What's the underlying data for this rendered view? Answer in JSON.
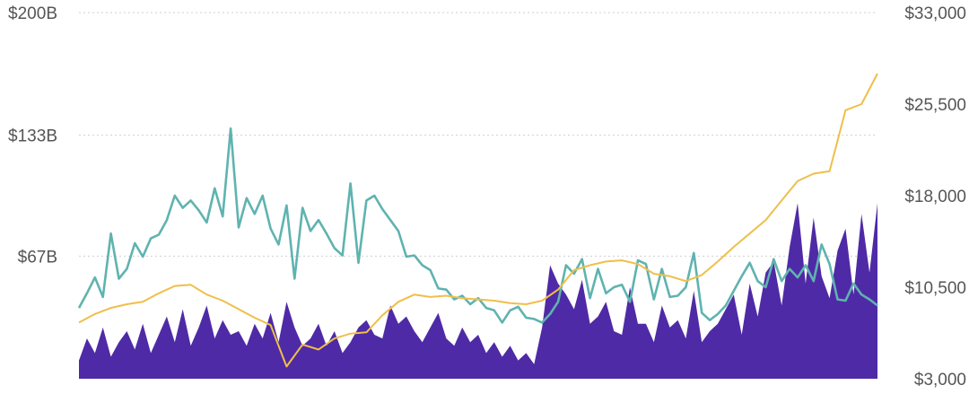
{
  "chart_data": {
    "type": "area",
    "title": "",
    "xlabel": "",
    "grid": true,
    "legend": "none",
    "axes": {
      "left": {
        "ticks": [
          "$200B",
          "$133B",
          "$67B"
        ],
        "tick_values": [
          200,
          133,
          67
        ],
        "range": [
          0,
          200
        ],
        "unit": "billion USD"
      },
      "right": {
        "ticks": [
          "$33,000",
          "$25,500",
          "$18,000",
          "$10,500",
          "$3,000"
        ],
        "tick_values": [
          33000,
          25500,
          18000,
          10500,
          3000
        ],
        "range": [
          3000,
          33000
        ]
      }
    },
    "x_range": [
      0,
      1
    ],
    "colors": {
      "area": "#4f2aa6",
      "teal": "#5fb3b0",
      "gold": "#efbf4a"
    },
    "series": [
      {
        "kind": "area",
        "axis": "left",
        "x": [
          0,
          0.01,
          0.02,
          0.03,
          0.04,
          0.05,
          0.06,
          0.07,
          0.08,
          0.09,
          0.1,
          0.11,
          0.12,
          0.13,
          0.14,
          0.15,
          0.16,
          0.17,
          0.18,
          0.19,
          0.2,
          0.21,
          0.22,
          0.23,
          0.24,
          0.25,
          0.26,
          0.27,
          0.28,
          0.29,
          0.3,
          0.31,
          0.32,
          0.33,
          0.34,
          0.35,
          0.36,
          0.37,
          0.38,
          0.39,
          0.4,
          0.41,
          0.42,
          0.43,
          0.44,
          0.45,
          0.46,
          0.47,
          0.48,
          0.49,
          0.5,
          0.51,
          0.52,
          0.53,
          0.54,
          0.55,
          0.56,
          0.57,
          0.58,
          0.59,
          0.6,
          0.61,
          0.62,
          0.63,
          0.64,
          0.65,
          0.66,
          0.67,
          0.68,
          0.69,
          0.7,
          0.71,
          0.72,
          0.73,
          0.74,
          0.75,
          0.76,
          0.77,
          0.78,
          0.79,
          0.8,
          0.81,
          0.82,
          0.83,
          0.84,
          0.85,
          0.86,
          0.87,
          0.88,
          0.89,
          0.9,
          0.91,
          0.92,
          0.93,
          0.94,
          0.95,
          0.96,
          0.97,
          0.98,
          0.99,
          1
        ],
        "values": [
          10,
          22,
          14,
          28,
          12,
          20,
          26,
          16,
          30,
          14,
          24,
          34,
          20,
          38,
          18,
          28,
          40,
          22,
          32,
          24,
          26,
          18,
          30,
          22,
          36,
          20,
          42,
          28,
          18,
          22,
          30,
          18,
          26,
          14,
          20,
          28,
          32,
          24,
          22,
          40,
          30,
          34,
          26,
          20,
          28,
          36,
          22,
          18,
          28,
          20,
          24,
          14,
          20,
          12,
          18,
          10,
          14,
          8,
          28,
          62,
          52,
          46,
          38,
          54,
          30,
          34,
          42,
          26,
          24,
          50,
          30,
          30,
          20,
          40,
          28,
          32,
          22,
          48,
          20,
          26,
          30,
          38,
          46,
          24,
          52,
          34,
          58,
          64,
          40,
          72,
          96,
          52,
          88,
          56,
          44,
          70,
          82,
          46,
          90,
          58,
          96
        ]
      },
      {
        "kind": "line",
        "axis": "right",
        "x": [
          0,
          0.01,
          0.02,
          0.03,
          0.04,
          0.05,
          0.06,
          0.07,
          0.08,
          0.09,
          0.1,
          0.11,
          0.12,
          0.13,
          0.14,
          0.15,
          0.16,
          0.17,
          0.18,
          0.19,
          0.2,
          0.21,
          0.22,
          0.23,
          0.24,
          0.25,
          0.26,
          0.27,
          0.28,
          0.29,
          0.3,
          0.31,
          0.32,
          0.33,
          0.34,
          0.35,
          0.36,
          0.37,
          0.38,
          0.39,
          0.4,
          0.41,
          0.42,
          0.43,
          0.44,
          0.45,
          0.46,
          0.47,
          0.48,
          0.49,
          0.5,
          0.51,
          0.52,
          0.53,
          0.54,
          0.55,
          0.56,
          0.57,
          0.58,
          0.59,
          0.6,
          0.61,
          0.62,
          0.63,
          0.64,
          0.65,
          0.66,
          0.67,
          0.68,
          0.69,
          0.7,
          0.71,
          0.72,
          0.73,
          0.74,
          0.75,
          0.76,
          0.77,
          0.78,
          0.79,
          0.8,
          0.81,
          0.82,
          0.83,
          0.84,
          0.85,
          0.86,
          0.87,
          0.88,
          0.89,
          0.9,
          0.91,
          0.92,
          0.93,
          0.94,
          0.95,
          0.96,
          0.97,
          0.98,
          0.99,
          1
        ],
        "values": [
          8800,
          10000,
          11300,
          9700,
          14900,
          11200,
          12000,
          14100,
          13000,
          14500,
          14800,
          16000,
          18000,
          17000,
          17600,
          16800,
          15800,
          18600,
          16300,
          23500,
          15400,
          17800,
          16500,
          18000,
          15300,
          14000,
          17200,
          11200,
          17000,
          15100,
          16000,
          14900,
          13700,
          13100,
          19000,
          12500,
          17600,
          18000,
          16900,
          16000,
          15100,
          13000,
          13100,
          12300,
          11900,
          10400,
          10300,
          9500,
          9800,
          9100,
          9600,
          8800,
          8600,
          7600,
          8600,
          8900,
          8000,
          7900,
          7600,
          8300,
          9300,
          12300,
          11600,
          12800,
          9600,
          12000,
          10000,
          10500,
          10700,
          9300,
          12700,
          12400,
          9500,
          12000,
          9700,
          9800,
          10500,
          13300,
          8400,
          7800,
          8300,
          9000,
          10200,
          11400,
          12500,
          11000,
          10500,
          12800,
          11000,
          12000,
          11300,
          12300,
          11000,
          14000,
          12400,
          9500,
          9400,
          10800,
          9900,
          9500,
          9000
        ]
      },
      {
        "kind": "line",
        "axis": "right",
        "x": [
          0,
          0.02,
          0.04,
          0.06,
          0.08,
          0.1,
          0.12,
          0.14,
          0.16,
          0.18,
          0.2,
          0.22,
          0.24,
          0.26,
          0.28,
          0.3,
          0.32,
          0.34,
          0.36,
          0.38,
          0.4,
          0.42,
          0.44,
          0.46,
          0.48,
          0.5,
          0.52,
          0.54,
          0.56,
          0.58,
          0.6,
          0.62,
          0.64,
          0.66,
          0.68,
          0.7,
          0.72,
          0.74,
          0.76,
          0.78,
          0.8,
          0.82,
          0.84,
          0.86,
          0.88,
          0.9,
          0.92,
          0.94,
          0.96,
          0.98,
          1
        ],
        "values": [
          7600,
          8300,
          8800,
          9100,
          9300,
          10000,
          10600,
          10700,
          9900,
          9400,
          8700,
          8000,
          7400,
          4000,
          5800,
          5400,
          6300,
          6700,
          6800,
          8200,
          9300,
          9900,
          9700,
          9800,
          9600,
          9500,
          9400,
          9200,
          9100,
          9400,
          10300,
          11900,
          12300,
          12600,
          12700,
          12400,
          11600,
          11400,
          11000,
          11500,
          12600,
          13800,
          14900,
          16000,
          17600,
          19200,
          19800,
          20000,
          25000,
          25500,
          28000
        ]
      }
    ]
  }
}
